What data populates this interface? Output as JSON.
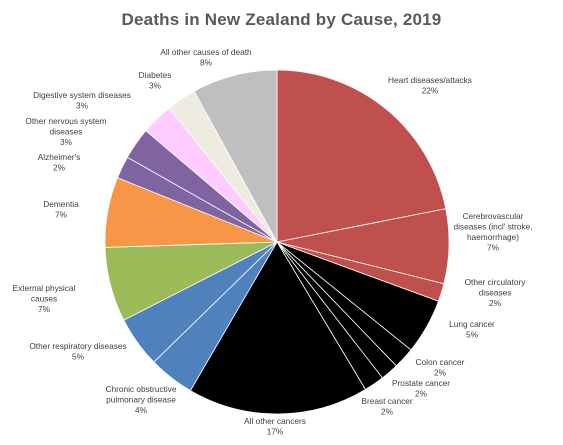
{
  "chart_data": {
    "type": "pie",
    "title": "Deaths in New Zealand by Cause, 2019",
    "slices": [
      {
        "name": "Heart diseases/attacks",
        "label_lines": [
          "Heart diseases/attacks"
        ],
        "pct_label": "22%",
        "value": 21.9,
        "color": "#C0504D"
      },
      {
        "name": "Cerebrovascular diseases (incl' stroke, haemorrhage)",
        "label_lines": [
          "Cerebrovascular",
          "diseases (incl' stroke,",
          "haemorrhage)"
        ],
        "pct_label": "7%",
        "value": 7.0,
        "color": "#C0504D"
      },
      {
        "name": "Other circulatory diseases",
        "label_lines": [
          "Other circulatory",
          "diseases"
        ],
        "pct_label": "2%",
        "value": 1.7,
        "color": "#C0504D"
      },
      {
        "name": "Lung cancer",
        "label_lines": [
          "Lung cancer"
        ],
        "pct_label": "5%",
        "value": 5.2,
        "color": "#000000"
      },
      {
        "name": "Colon cancer",
        "label_lines": [
          "Colon cancer"
        ],
        "pct_label": "2%",
        "value": 2.0,
        "color": "#000000"
      },
      {
        "name": "Prostate cancer",
        "label_lines": [
          "Prostate cancer"
        ],
        "pct_label": "2%",
        "value": 1.7,
        "color": "#000000"
      },
      {
        "name": "Breast cancer",
        "label_lines": [
          "Breast cancer"
        ],
        "pct_label": "2%",
        "value": 1.9,
        "color": "#000000"
      },
      {
        "name": "All other cancers",
        "label_lines": [
          "All other cancers"
        ],
        "pct_label": "17%",
        "value": 17.0,
        "color": "#000000"
      },
      {
        "name": "Chronic obstructive pulmonary disease",
        "label_lines": [
          "Chronic obstructive",
          "pulmonary disease"
        ],
        "pct_label": "4%",
        "value": 4.3,
        "color": "#4F81BD"
      },
      {
        "name": "Other respiratory diseases",
        "label_lines": [
          "Other respiratory diseases"
        ],
        "pct_label": "5%",
        "value": 4.8,
        "color": "#4F81BD"
      },
      {
        "name": "External physical causes",
        "label_lines": [
          "External physical",
          "causes"
        ],
        "pct_label": "7%",
        "value": 7.0,
        "color": "#9BBB59"
      },
      {
        "name": "Dementia",
        "label_lines": [
          "Dementia"
        ],
        "pct_label": "7%",
        "value": 6.6,
        "color": "#F79646"
      },
      {
        "name": "Alzheimer's",
        "label_lines": [
          "Alzheimer's"
        ],
        "pct_label": "2%",
        "value": 2.1,
        "color": "#8064A2"
      },
      {
        "name": "Other nervous system diseases",
        "label_lines": [
          "Other nervous system",
          "diseases"
        ],
        "pct_label": "3%",
        "value": 3.0,
        "color": "#8064A2"
      },
      {
        "name": "Digestive system diseases",
        "label_lines": [
          "Digestive system diseases"
        ],
        "pct_label": "3%",
        "value": 3.0,
        "color": "#FFCCFF"
      },
      {
        "name": "Diabetes",
        "label_lines": [
          "Diabetes"
        ],
        "pct_label": "3%",
        "value": 2.8,
        "color": "#EEECE1"
      },
      {
        "name": "All other causes of death",
        "label_lines": [
          "All other causes of death"
        ],
        "pct_label": "8%",
        "value": 8.0,
        "color": "#BFBFBF"
      }
    ]
  }
}
